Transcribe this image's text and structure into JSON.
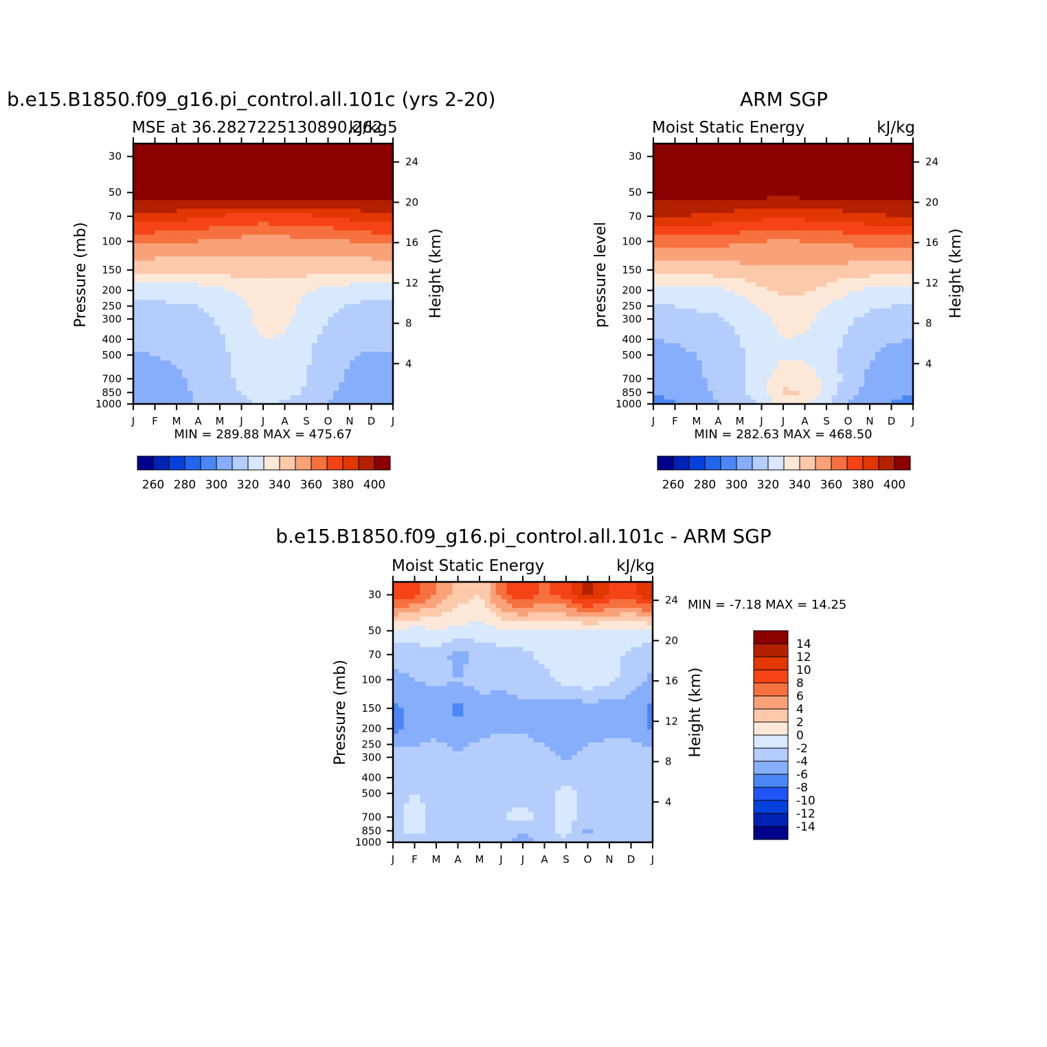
{
  "colors": {
    "seq14": [
      "#00008c",
      "#0022b4",
      "#0440dc",
      "#2266ee",
      "#4a87f5",
      "#86aefa",
      "#b4cdfc",
      "#d8e8fd",
      "#fde8d8",
      "#fcc9ab",
      "#f9a27a",
      "#f6713f",
      "#f54316",
      "#e33700",
      "#b32000",
      "#8c0000"
    ],
    "div14": [
      "#00008c",
      "#0022b4",
      "#0440dc",
      "#1f55f5",
      "#4a87f5",
      "#86aefa",
      "#b4cdfc",
      "#d8e8fd",
      "#fde8d8",
      "#fcc9ab",
      "#f9a27a",
      "#f6713f",
      "#f54316",
      "#e33700",
      "#b32000",
      "#8c0000"
    ]
  },
  "months": [
    "J",
    "F",
    "M",
    "A",
    "M",
    "J",
    "J",
    "A",
    "S",
    "O",
    "N",
    "D",
    "J"
  ],
  "pressure_ticks": [
    "30",
    "50",
    "70",
    "100",
    "150",
    "200",
    "250",
    "300",
    "400",
    "500",
    "700",
    "850",
    "1000"
  ],
  "height_ticks": [
    "24",
    "20",
    "16",
    "12",
    "8",
    "4"
  ],
  "panels": {
    "model": {
      "title": "b.e15.B1850.f09_g16.pi_control.all.101c (yrs 2-20)",
      "subtitle_left": "MSE at 36.2827225130890,262.5",
      "subtitle_right": "kJ/kg",
      "ylabel": "Pressure (mb)",
      "ylabel_right": "Height (km)",
      "minmax": "MIN =  289.88 MAX =  475.67"
    },
    "obs": {
      "title": "ARM SGP",
      "subtitle_left": "Moist Static Energy",
      "subtitle_right": "kJ/kg",
      "ylabel": "pressure level",
      "ylabel_right": "Height (km)",
      "minmax": "MIN =  282.63 MAX =  468.50"
    },
    "diff": {
      "title": "b.e15.B1850.f09_g16.pi_control.all.101c - ARM SGP",
      "subtitle_left": "Moist Static Energy",
      "subtitle_right": "kJ/kg",
      "ylabel": "Pressure (mb)",
      "ylabel_right": "Height (km)",
      "minmax": "MIN =   -7.18 MAX =   14.25"
    }
  },
  "colorbars": {
    "sequential_labels": [
      "260",
      "280",
      "300",
      "320",
      "340",
      "360",
      "380",
      "400"
    ],
    "diff_labels": [
      "14",
      "12",
      "10",
      "8",
      "6",
      "4",
      "2",
      "0",
      "-2",
      "-4",
      "-6",
      "-8",
      "-10",
      "-12",
      "-14"
    ]
  },
  "chart_data": [
    {
      "type": "heatmap",
      "title": "b.e15.B1850.f09_g16.pi_control.all.101c (yrs 2-20)",
      "subtitle": "MSE at 36.2827225130890,262.5",
      "units": "kJ/kg",
      "ylabel": "Pressure (mb)",
      "ylabel_right": "Height (km)",
      "x": [
        "J",
        "F",
        "M",
        "A",
        "M",
        "J",
        "J",
        "A",
        "S",
        "O",
        "N",
        "D",
        "J"
      ],
      "levels_mb": [
        1000,
        850,
        700,
        500,
        400,
        300,
        250,
        200,
        150,
        100,
        70,
        50,
        30
      ],
      "contour_levels": [
        260,
        270,
        280,
        290,
        300,
        310,
        320,
        330,
        340,
        350,
        360,
        370,
        380,
        390,
        400
      ],
      "values": [
        [
          300,
          300,
          305,
          312,
          316,
          318,
          320,
          318,
          314,
          310,
          305,
          300,
          300
        ],
        [
          302,
          303,
          306,
          312,
          316,
          320,
          326,
          325,
          318,
          312,
          306,
          302,
          302
        ],
        [
          304,
          305,
          308,
          313,
          317,
          322,
          328,
          327,
          320,
          314,
          308,
          304,
          304
        ],
        [
          309,
          310,
          312,
          315,
          318,
          323,
          327,
          326,
          321,
          316,
          311,
          309,
          309
        ],
        [
          312,
          313,
          314,
          316,
          319,
          324,
          330,
          329,
          322,
          318,
          314,
          312,
          312
        ],
        [
          316,
          316,
          317,
          318,
          321,
          327,
          333,
          332,
          326,
          320,
          317,
          316,
          316
        ],
        [
          318,
          318,
          319,
          320,
          323,
          328,
          334,
          333,
          327,
          322,
          319,
          318,
          318
        ],
        [
          324,
          324,
          324,
          325,
          328,
          331,
          334,
          334,
          331,
          327,
          325,
          324,
          324
        ],
        [
          342,
          342,
          342,
          343,
          344,
          345,
          345,
          345,
          344,
          343,
          342,
          342,
          342
        ],
        [
          362,
          362,
          361,
          360,
          358,
          356,
          355,
          356,
          357,
          358,
          360,
          362,
          362
        ],
        [
          385,
          385,
          384,
          382,
          379,
          377,
          376,
          377,
          378,
          380,
          383,
          385,
          385
        ],
        [
          410,
          410,
          410,
          410,
          410,
          410,
          410,
          410,
          410,
          410,
          410,
          410,
          410
        ],
        [
          430,
          430,
          430,
          430,
          430,
          430,
          430,
          430,
          430,
          430,
          430,
          430,
          430
        ]
      ],
      "min": 289.88,
      "max": 475.67
    },
    {
      "type": "heatmap",
      "title": "ARM SGP",
      "subtitle": "Moist Static Energy",
      "units": "kJ/kg",
      "ylabel": "pressure level",
      "ylabel_right": "Height (km)",
      "x": [
        "J",
        "F",
        "M",
        "A",
        "M",
        "J",
        "J",
        "A",
        "S",
        "O",
        "N",
        "D",
        "J"
      ],
      "levels_mb": [
        1000,
        850,
        700,
        500,
        400,
        300,
        250,
        200,
        150,
        100,
        70,
        50,
        30
      ],
      "contour_levels": [
        260,
        270,
        280,
        290,
        300,
        310,
        320,
        330,
        340,
        350,
        360,
        370,
        380,
        390,
        400
      ],
      "values": [
        [
          298,
          299,
          303,
          310,
          315,
          322,
          335,
          333,
          320,
          310,
          303,
          299,
          298
        ],
        [
          300,
          302,
          306,
          312,
          317,
          326,
          342,
          340,
          328,
          314,
          306,
          302,
          300
        ],
        [
          303,
          304,
          308,
          313,
          318,
          326,
          337,
          336,
          327,
          316,
          308,
          304,
          303
        ],
        [
          306,
          307,
          310,
          314,
          319,
          324,
          328,
          327,
          323,
          317,
          311,
          307,
          306
        ],
        [
          310,
          311,
          313,
          316,
          320,
          325,
          330,
          329,
          324,
          319,
          314,
          311,
          310
        ],
        [
          316,
          317,
          318,
          319,
          322,
          328,
          333,
          332,
          327,
          321,
          318,
          317,
          316
        ],
        [
          320,
          320,
          321,
          322,
          325,
          331,
          336,
          335,
          330,
          324,
          321,
          320,
          320
        ],
        [
          326,
          326,
          327,
          328,
          333,
          338,
          342,
          341,
          337,
          331,
          328,
          326,
          326
        ],
        [
          345,
          345,
          345,
          345,
          346,
          347,
          348,
          348,
          347,
          346,
          345,
          345,
          345
        ],
        [
          365,
          365,
          364,
          363,
          362,
          360,
          359,
          360,
          361,
          362,
          364,
          365,
          365
        ],
        [
          390,
          390,
          389,
          387,
          385,
          383,
          382,
          383,
          384,
          386,
          388,
          390,
          390
        ],
        [
          405,
          405,
          405,
          405,
          405,
          405,
          405,
          405,
          405,
          405,
          405,
          405,
          405
        ],
        [
          425,
          425,
          425,
          425,
          425,
          425,
          425,
          425,
          425,
          425,
          425,
          425,
          425
        ]
      ],
      "min": 282.63,
      "max": 468.5
    },
    {
      "type": "heatmap",
      "title": "b.e15.B1850.f09_g16.pi_control.all.101c - ARM SGP",
      "subtitle": "Moist Static Energy",
      "units": "kJ/kg",
      "ylabel": "Pressure (mb)",
      "ylabel_right": "Height (km)",
      "x": [
        "J",
        "F",
        "M",
        "A",
        "M",
        "J",
        "J",
        "A",
        "S",
        "O",
        "N",
        "D",
        "J"
      ],
      "levels_mb": [
        1000,
        850,
        700,
        500,
        400,
        300,
        250,
        200,
        150,
        100,
        70,
        50,
        30
      ],
      "contour_levels": [
        -14,
        -12,
        -10,
        -8,
        -6,
        -4,
        -2,
        0,
        2,
        4,
        6,
        8,
        10,
        12,
        14
      ],
      "values": [
        [
          -2.5,
          -2.5,
          -2.6,
          -3.0,
          -2.4,
          -2.5,
          -6.5,
          -2.4,
          -2.5,
          -3.0,
          -2.5,
          -2.4,
          -2.5
        ],
        [
          -2.5,
          -1.5,
          -2.5,
          -2.5,
          -2.5,
          -2.5,
          -3.5,
          -2.5,
          -1.5,
          -4.5,
          -2.5,
          -2.5,
          -2.5
        ],
        [
          -2.5,
          -1.2,
          -2.5,
          -2.5,
          -2.5,
          -2.0,
          -1.5,
          -2.5,
          -1.2,
          -3.0,
          -2.5,
          -2.5,
          -2.5
        ],
        [
          -2.5,
          -2.0,
          -2.5,
          -2.5,
          -2.5,
          -2.5,
          -2.5,
          -2.5,
          -1.5,
          -2.5,
          -2.5,
          -2.5,
          -2.5
        ],
        [
          -2.6,
          -2.6,
          -2.6,
          -2.6,
          -2.6,
          -2.6,
          -2.6,
          -2.6,
          -2.6,
          -2.6,
          -2.6,
          -2.6,
          -2.6
        ],
        [
          -3.0,
          -3.0,
          -3.0,
          -3.5,
          -3.0,
          -3.0,
          -3.0,
          -3.0,
          -4.5,
          -3.0,
          -3.0,
          -3.0,
          -3.0
        ],
        [
          -4.5,
          -4.2,
          -3.5,
          -4.5,
          -3.5,
          -3.0,
          -3.0,
          -4.0,
          -5.0,
          -4.0,
          -3.5,
          -3.5,
          -4.5
        ],
        [
          -6.5,
          -5.5,
          -5.0,
          -5.5,
          -5.0,
          -4.5,
          -4.5,
          -5.5,
          -5.5,
          -5.0,
          -5.0,
          -5.0,
          -6.5
        ],
        [
          -6.5,
          -5.5,
          -5.0,
          -6.5,
          -5.0,
          -5.0,
          -4.5,
          -4.5,
          -5.5,
          -5.0,
          -5.0,
          -5.0,
          -6.5
        ],
        [
          -4.5,
          -4.0,
          -3.5,
          -4.0,
          -3.0,
          -3.5,
          -3.0,
          -2.5,
          -1.2,
          -0.5,
          -1.5,
          -3.0,
          -4.5
        ],
        [
          -3.5,
          -3.0,
          -2.5,
          -5.0,
          -3.0,
          -3.0,
          -2.5,
          -1.5,
          -0.8,
          -0.5,
          -1.0,
          -2.5,
          -3.5
        ],
        [
          -0.5,
          -1.0,
          -0.5,
          -0.5,
          -1.0,
          -0.5,
          -0.5,
          -0.5,
          -0.5,
          -0.5,
          -0.5,
          -0.5,
          -0.5
        ],
        [
          10.0,
          8.5,
          6.0,
          3.0,
          2.0,
          7.0,
          10.0,
          7.5,
          9.0,
          12.5,
          10.0,
          9.0,
          12.0
        ]
      ],
      "min": -7.18,
      "max": 14.25
    }
  ]
}
